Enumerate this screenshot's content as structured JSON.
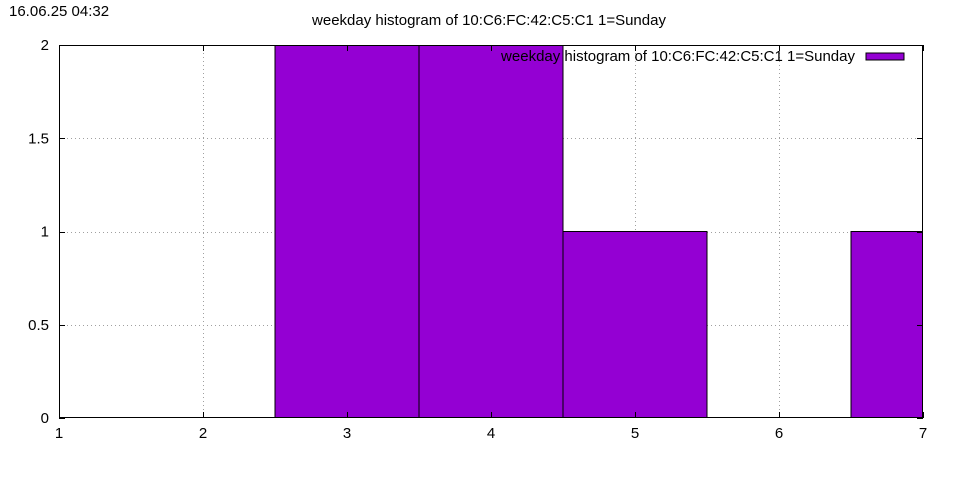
{
  "timestamp": "16.06.25 04:32",
  "chart_data": {
    "type": "bar",
    "title": "weekday histogram of 10:C6:FC:42:C5:C1 1=Sunday",
    "xlabel": "",
    "ylabel": "",
    "x": [
      1,
      2,
      3,
      4,
      5,
      6,
      7
    ],
    "values": [
      0,
      0,
      2,
      2,
      1,
      0,
      1
    ],
    "bar_width": 1,
    "xlim": [
      1,
      7
    ],
    "ylim": [
      0,
      2
    ],
    "xticks": [
      "1",
      "2",
      "3",
      "4",
      "5",
      "6",
      "7"
    ],
    "yticks": [
      "0",
      "0.5",
      "1",
      "1.5",
      "2"
    ],
    "grid": true,
    "series": [
      {
        "name": "weekday histogram of 10:C6:FC:42:C5:C1 1=Sunday",
        "color": "#9400d3"
      }
    ],
    "legend_position": "top-right"
  }
}
